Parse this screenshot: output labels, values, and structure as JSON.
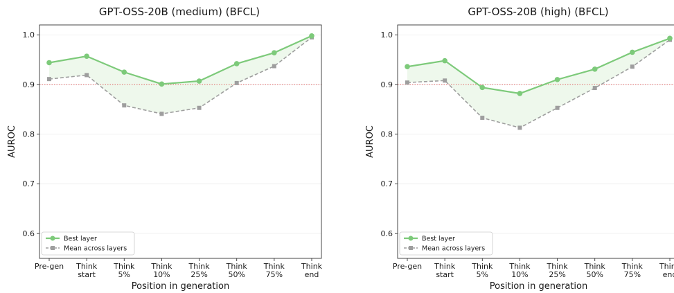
{
  "colors": {
    "best": "#7dca7a",
    "mean": "#9e9e9e",
    "fill": "#eef8ec",
    "threshold": "#e06666",
    "axis": "#333333",
    "grid": "#ececec"
  },
  "chart_data": [
    {
      "type": "line",
      "title": "GPT-OSS-20B (medium) (BFCL)",
      "xlabel": "Position in generation",
      "ylabel": "AUROC",
      "categories": [
        "Pre-gen",
        "Think\nstart",
        "Think\n5%",
        "Think\n10%",
        "Think\n25%",
        "Think\n50%",
        "Think\n75%",
        "Think\nend"
      ],
      "ylim": [
        0.55,
        1.02
      ],
      "yticks": [
        "0.6",
        "0.7",
        "0.8",
        "0.9",
        "1.0"
      ],
      "threshold": 0.9,
      "grid": "horizontal",
      "legend_position": "lower-left",
      "series": [
        {
          "name": "Best layer",
          "marker": "circle",
          "line": "solid",
          "values": [
            0.944,
            0.957,
            0.925,
            0.901,
            0.907,
            0.942,
            0.964,
            0.998
          ]
        },
        {
          "name": "Mean across layers",
          "marker": "square",
          "line": "dashed",
          "values": [
            0.911,
            0.919,
            0.858,
            0.841,
            0.853,
            0.903,
            0.937,
            0.995
          ]
        }
      ]
    },
    {
      "type": "line",
      "title": "GPT-OSS-20B (high) (BFCL)",
      "xlabel": "Position in generation",
      "ylabel": "AUROC",
      "categories": [
        "Pre-gen",
        "Think\nstart",
        "Think\n5%",
        "Think\n10%",
        "Think\n25%",
        "Think\n50%",
        "Think\n75%",
        "Think\nend"
      ],
      "ylim": [
        0.55,
        1.02
      ],
      "yticks": [
        "0.6",
        "0.7",
        "0.8",
        "0.9",
        "1.0"
      ],
      "threshold": 0.9,
      "grid": "horizontal",
      "legend_position": "lower-left",
      "series": [
        {
          "name": "Best layer",
          "marker": "circle",
          "line": "solid",
          "values": [
            0.936,
            0.948,
            0.894,
            0.882,
            0.91,
            0.931,
            0.965,
            0.993
          ]
        },
        {
          "name": "Mean across layers",
          "marker": "square",
          "line": "dashed",
          "values": [
            0.904,
            0.908,
            0.833,
            0.813,
            0.853,
            0.893,
            0.936,
            0.99
          ]
        }
      ]
    }
  ]
}
